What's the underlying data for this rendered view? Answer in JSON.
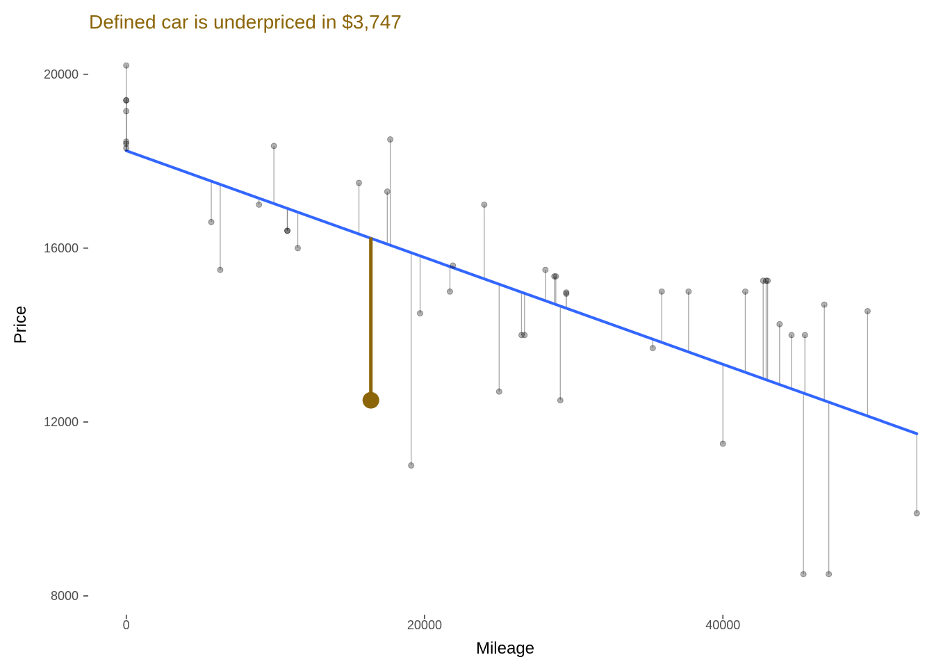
{
  "chart_data": {
    "type": "scatter",
    "title": "Defined car is underpriced in $3,747",
    "xlabel": "Mileage",
    "ylabel": "Price",
    "xlim": [
      -2500,
      53500
    ],
    "ylim": [
      7600,
      20300
    ],
    "x_ticks": [
      0,
      20000,
      40000
    ],
    "y_ticks": [
      8000,
      12000,
      16000,
      20000
    ],
    "grid": false,
    "legend": "none",
    "regression": {
      "intercept": 18240,
      "slope": -0.1228
    },
    "points": [
      {
        "x": 0,
        "y": 20200
      },
      {
        "x": 0,
        "y": 19400
      },
      {
        "x": 0,
        "y": 19400
      },
      {
        "x": 0,
        "y": 19150
      },
      {
        "x": 0,
        "y": 18450
      },
      {
        "x": 0,
        "y": 18400
      },
      {
        "x": 0,
        "y": 18300
      },
      {
        "x": 5700,
        "y": 16600
      },
      {
        "x": 6300,
        "y": 15500
      },
      {
        "x": 8900,
        "y": 17000
      },
      {
        "x": 9900,
        "y": 18350
      },
      {
        "x": 10800,
        "y": 16400
      },
      {
        "x": 10800,
        "y": 16400
      },
      {
        "x": 11500,
        "y": 16000
      },
      {
        "x": 15600,
        "y": 17500
      },
      {
        "x": 17500,
        "y": 17300
      },
      {
        "x": 17700,
        "y": 18500
      },
      {
        "x": 19100,
        "y": 11000
      },
      {
        "x": 19700,
        "y": 14500
      },
      {
        "x": 21700,
        "y": 15000
      },
      {
        "x": 21900,
        "y": 15600
      },
      {
        "x": 24000,
        "y": 17000
      },
      {
        "x": 25000,
        "y": 12700
      },
      {
        "x": 26500,
        "y": 14000
      },
      {
        "x": 26700,
        "y": 14000
      },
      {
        "x": 28100,
        "y": 15500
      },
      {
        "x": 28700,
        "y": 15350
      },
      {
        "x": 28800,
        "y": 15350
      },
      {
        "x": 29100,
        "y": 12500
      },
      {
        "x": 29500,
        "y": 14950
      },
      {
        "x": 29500,
        "y": 14980
      },
      {
        "x": 35300,
        "y": 13700
      },
      {
        "x": 35900,
        "y": 15000
      },
      {
        "x": 37700,
        "y": 15000
      },
      {
        "x": 40000,
        "y": 11500
      },
      {
        "x": 41500,
        "y": 15000
      },
      {
        "x": 42700,
        "y": 15250
      },
      {
        "x": 42900,
        "y": 15250
      },
      {
        "x": 43000,
        "y": 15250
      },
      {
        "x": 43800,
        "y": 14250
      },
      {
        "x": 44600,
        "y": 14000
      },
      {
        "x": 45400,
        "y": 8500
      },
      {
        "x": 45500,
        "y": 14000
      },
      {
        "x": 46800,
        "y": 14700
      },
      {
        "x": 47100,
        "y": 8500
      },
      {
        "x": 49700,
        "y": 14550
      },
      {
        "x": 53000,
        "y": 9900
      }
    ],
    "highlight": {
      "x": 16400,
      "y": 12500,
      "predicted": 16247,
      "underpriced_by": 3747
    },
    "colors": {
      "title": "#8B6508",
      "highlight": "#8B6508",
      "regression": "#3366FF",
      "points": "#000000",
      "segments": "#7f7f7f",
      "tick_labels": "#4d4d4d",
      "axis_titles": "#000000"
    }
  }
}
